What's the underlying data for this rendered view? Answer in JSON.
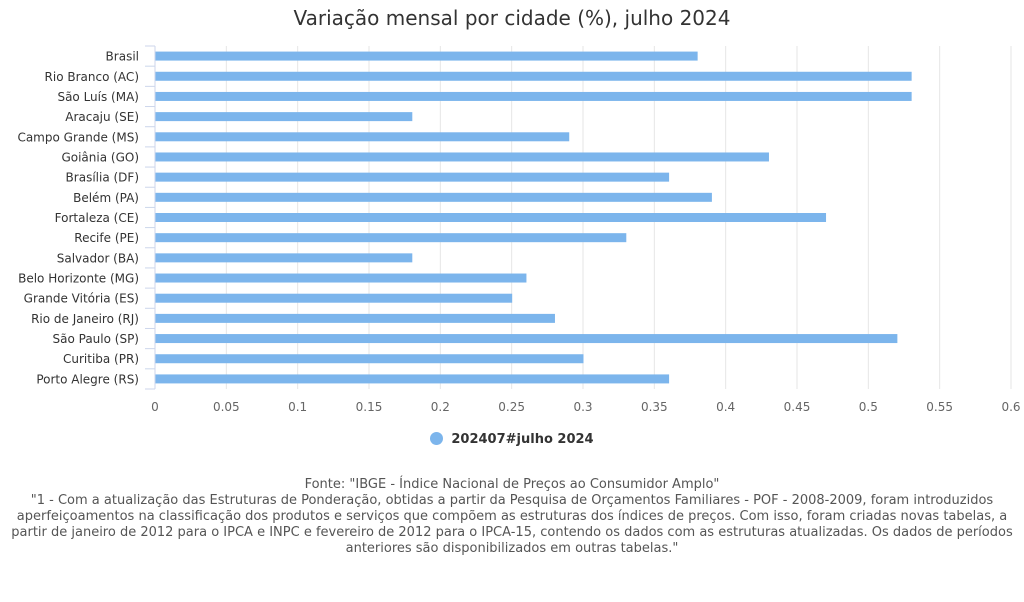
{
  "chart_data": {
    "type": "bar",
    "orientation": "horizontal",
    "title": "Variação mensal por cidade (%), julho 2024",
    "categories": [
      "Brasil",
      "Rio Branco (AC)",
      "São Luís (MA)",
      "Aracaju (SE)",
      "Campo Grande (MS)",
      "Goiânia (GO)",
      "Brasília (DF)",
      "Belém (PA)",
      "Fortaleza (CE)",
      "Recife (PE)",
      "Salvador (BA)",
      "Belo Horizonte (MG)",
      "Grande Vitória (ES)",
      "Rio de Janeiro (RJ)",
      "São Paulo (SP)",
      "Curitiba (PR)",
      "Porto Alegre (RS)"
    ],
    "series": [
      {
        "name": "202407#julho 2024",
        "values": [
          0.38,
          0.53,
          0.53,
          0.18,
          0.29,
          0.43,
          0.36,
          0.39,
          0.47,
          0.33,
          0.18,
          0.26,
          0.25,
          0.28,
          0.52,
          0.3,
          0.36
        ]
      }
    ],
    "xlim": [
      0,
      0.6
    ],
    "xticks": [
      "0",
      "0.05",
      "0.1",
      "0.15",
      "0.2",
      "0.25",
      "0.3",
      "0.35",
      "0.4",
      "0.45",
      "0.5",
      "0.55",
      "0.6"
    ],
    "grid": true,
    "legend_position": "bottom",
    "bar_color": "#7cb5ec"
  },
  "legend": {
    "label": "202407#julho 2024"
  },
  "footer": {
    "source": "Fonte: \"IBGE - Índice Nacional de Preços ao Consumidor Amplo\"",
    "note": "\"1 - Com a atualização das Estruturas de Ponderação, obtidas a partir da Pesquisa de Orçamentos Familiares - POF - 2008-2009, foram introduzidos aperfeiçoamentos na classificação dos produtos e serviços que compõem as estruturas dos índices de preços. Com isso, foram criadas novas tabelas, a partir de janeiro de 2012 para o IPCA e INPC e fevereiro de 2012 para o IPCA-15, contendo os dados com as estruturas atualizadas. Os dados de períodos anteriores são disponibilizados em outras tabelas.\""
  }
}
